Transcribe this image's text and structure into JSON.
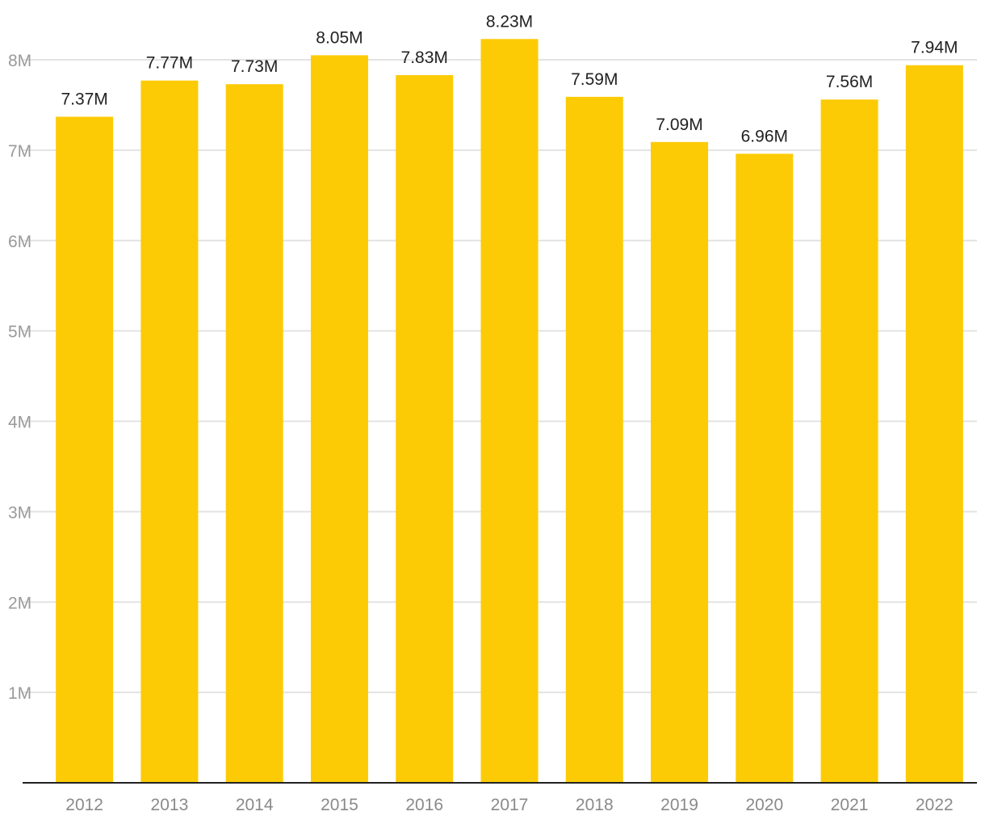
{
  "chart_data": {
    "type": "bar",
    "title": "",
    "xlabel": "",
    "ylabel": "",
    "categories": [
      "2012",
      "2013",
      "2014",
      "2015",
      "2016",
      "2017",
      "2018",
      "2019",
      "2020",
      "2021",
      "2022"
    ],
    "values": [
      7.37,
      7.77,
      7.73,
      8.05,
      7.83,
      8.23,
      7.59,
      7.09,
      6.96,
      7.56,
      7.94
    ],
    "value_labels": [
      "7.37M",
      "7.77M",
      "7.73M",
      "8.05M",
      "7.83M",
      "8.23M",
      "7.59M",
      "7.09M",
      "6.96M",
      "7.56M",
      "7.94M"
    ],
    "unit": "M",
    "ylim": [
      0,
      8
    ],
    "yticks": [
      1,
      2,
      3,
      4,
      5,
      6,
      7,
      8
    ],
    "ytick_labels": [
      "1M",
      "2M",
      "3M",
      "4M",
      "5M",
      "6M",
      "7M",
      "8M"
    ],
    "grid": true,
    "legend": "none",
    "colors": {
      "bar": "#FCCB06",
      "grid": "#e3e3e3",
      "axis": "#222222"
    }
  }
}
